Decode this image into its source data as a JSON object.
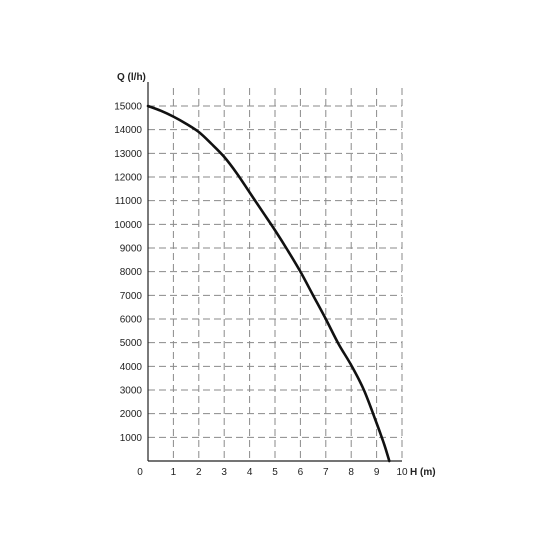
{
  "chart_data": {
    "type": "line",
    "title": "",
    "xlabel": "H (m)",
    "ylabel": "Q (l/h)",
    "xlim": [
      0,
      10
    ],
    "ylim": [
      0,
      15000
    ],
    "grid": true,
    "x_ticks": [
      0,
      1,
      2,
      3,
      4,
      5,
      6,
      7,
      8,
      9,
      10
    ],
    "x_tick_labels": [
      "0",
      "1",
      "2",
      "3",
      "4",
      "5",
      "6",
      "7",
      "8",
      "9",
      "10"
    ],
    "y_ticks": [
      1000,
      2000,
      3000,
      4000,
      5000,
      6000,
      7000,
      8000,
      9000,
      10000,
      11000,
      12000,
      13000,
      14000,
      15000
    ],
    "y_tick_labels": [
      "1000",
      "2000",
      "3000",
      "4000",
      "5000",
      "6000",
      "7000",
      "8000",
      "9000",
      "10000",
      "11000",
      "12000",
      "13000",
      "14000",
      "15000"
    ],
    "series": [
      {
        "x": [
          0,
          0.5,
          1,
          1.5,
          2,
          2.5,
          3,
          3.5,
          4,
          4.5,
          5,
          5.5,
          6,
          6.5,
          7,
          7.5,
          8,
          8.5,
          9,
          9.3,
          9.5
        ],
        "y": [
          15000,
          14800,
          14550,
          14250,
          13900,
          13400,
          12850,
          12150,
          11350,
          10550,
          9750,
          8900,
          8000,
          7000,
          6000,
          4950,
          4050,
          3000,
          1600,
          700,
          0
        ]
      }
    ],
    "line_color": "#111111",
    "grid_color": "#8a8a8a"
  }
}
